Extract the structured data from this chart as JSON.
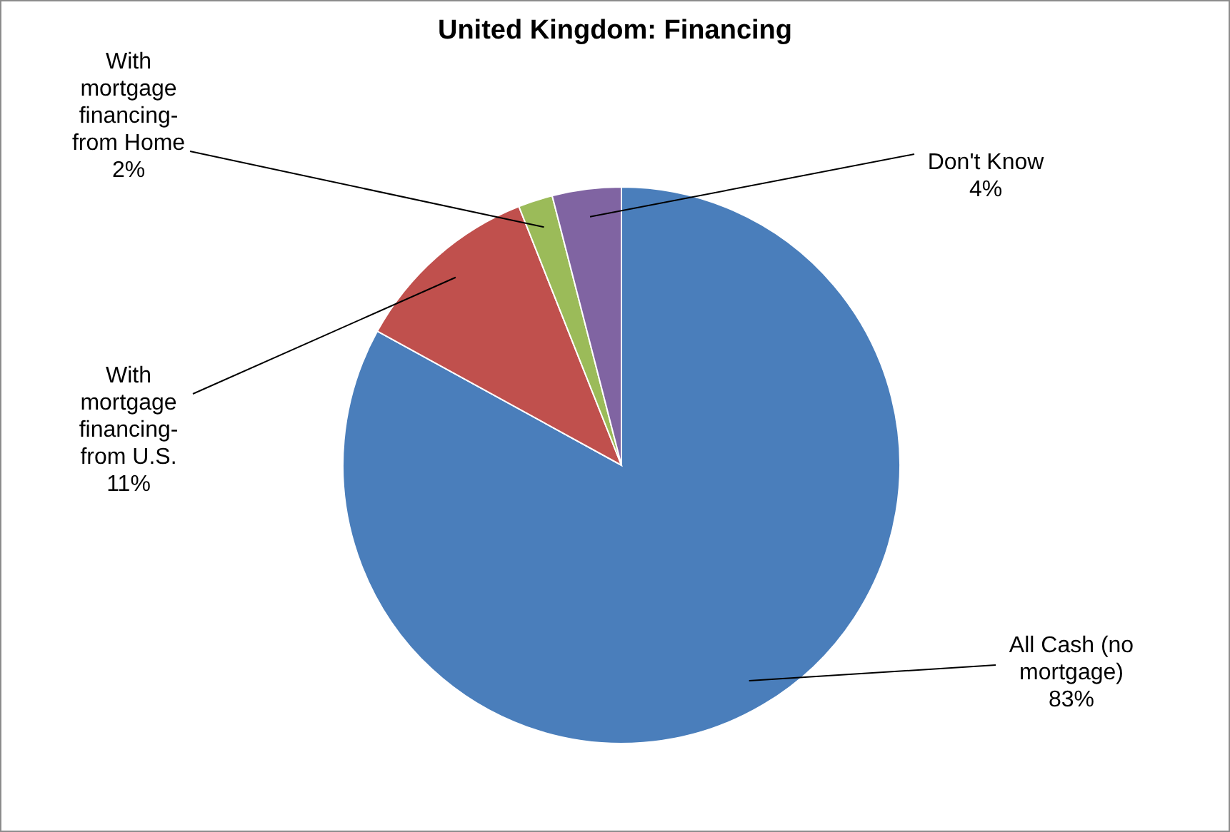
{
  "chart_data": {
    "type": "pie",
    "title": "United Kingdom: Financing",
    "categories": [
      "All Cash (no mortgage)",
      "With mortgage financing-from U.S.",
      "With mortgage financing-from Home",
      "Don't Know"
    ],
    "values": [
      83,
      11,
      2,
      4
    ],
    "value_labels": [
      "83%",
      "11%",
      "2%",
      "4%"
    ],
    "colors": [
      "#4a7ebb",
      "#c0504d",
      "#9bbb59",
      "#8064a2"
    ],
    "legend": false
  }
}
